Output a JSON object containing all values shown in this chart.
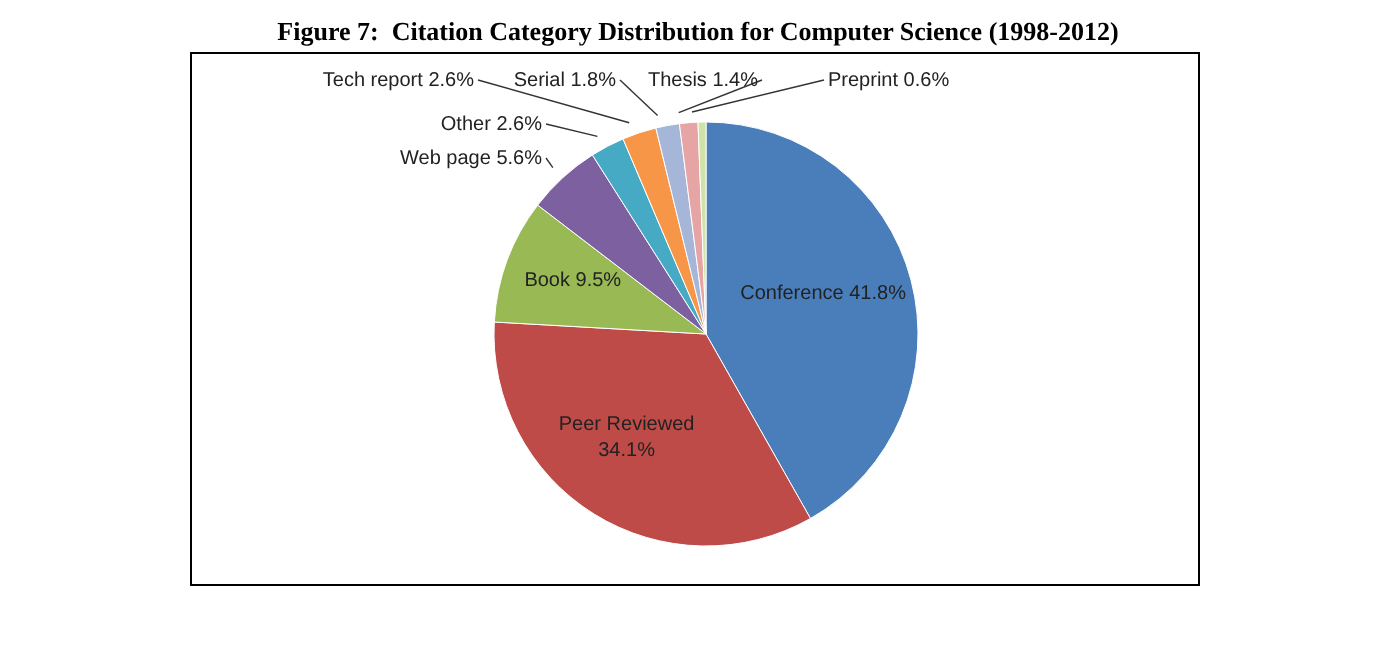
{
  "chart_data": {
    "type": "pie",
    "title": "Figure 7:  Citation Category Distribution for Computer Science (1998-2012)",
    "categories": [
      "Conference",
      "Peer Reviewed",
      "Book",
      "Web page",
      "Other",
      "Tech report",
      "Serial",
      "Thesis",
      "Preprint"
    ],
    "values": [
      41.8,
      34.1,
      9.5,
      5.6,
      2.6,
      2.6,
      1.8,
      1.4,
      0.6
    ],
    "value_labels": [
      "41.8%",
      "34.1%",
      "9.5%",
      "5.6%",
      "2.6%",
      "2.6%",
      "1.8%",
      "1.4%",
      "0.6%"
    ],
    "colors": [
      "#4a7ebb",
      "#be4b48",
      "#98b954",
      "#7d60a0",
      "#46aac5",
      "#f79646",
      "#a5b6d8",
      "#e6a5a4",
      "#cfe2a8"
    ],
    "legend": false
  }
}
